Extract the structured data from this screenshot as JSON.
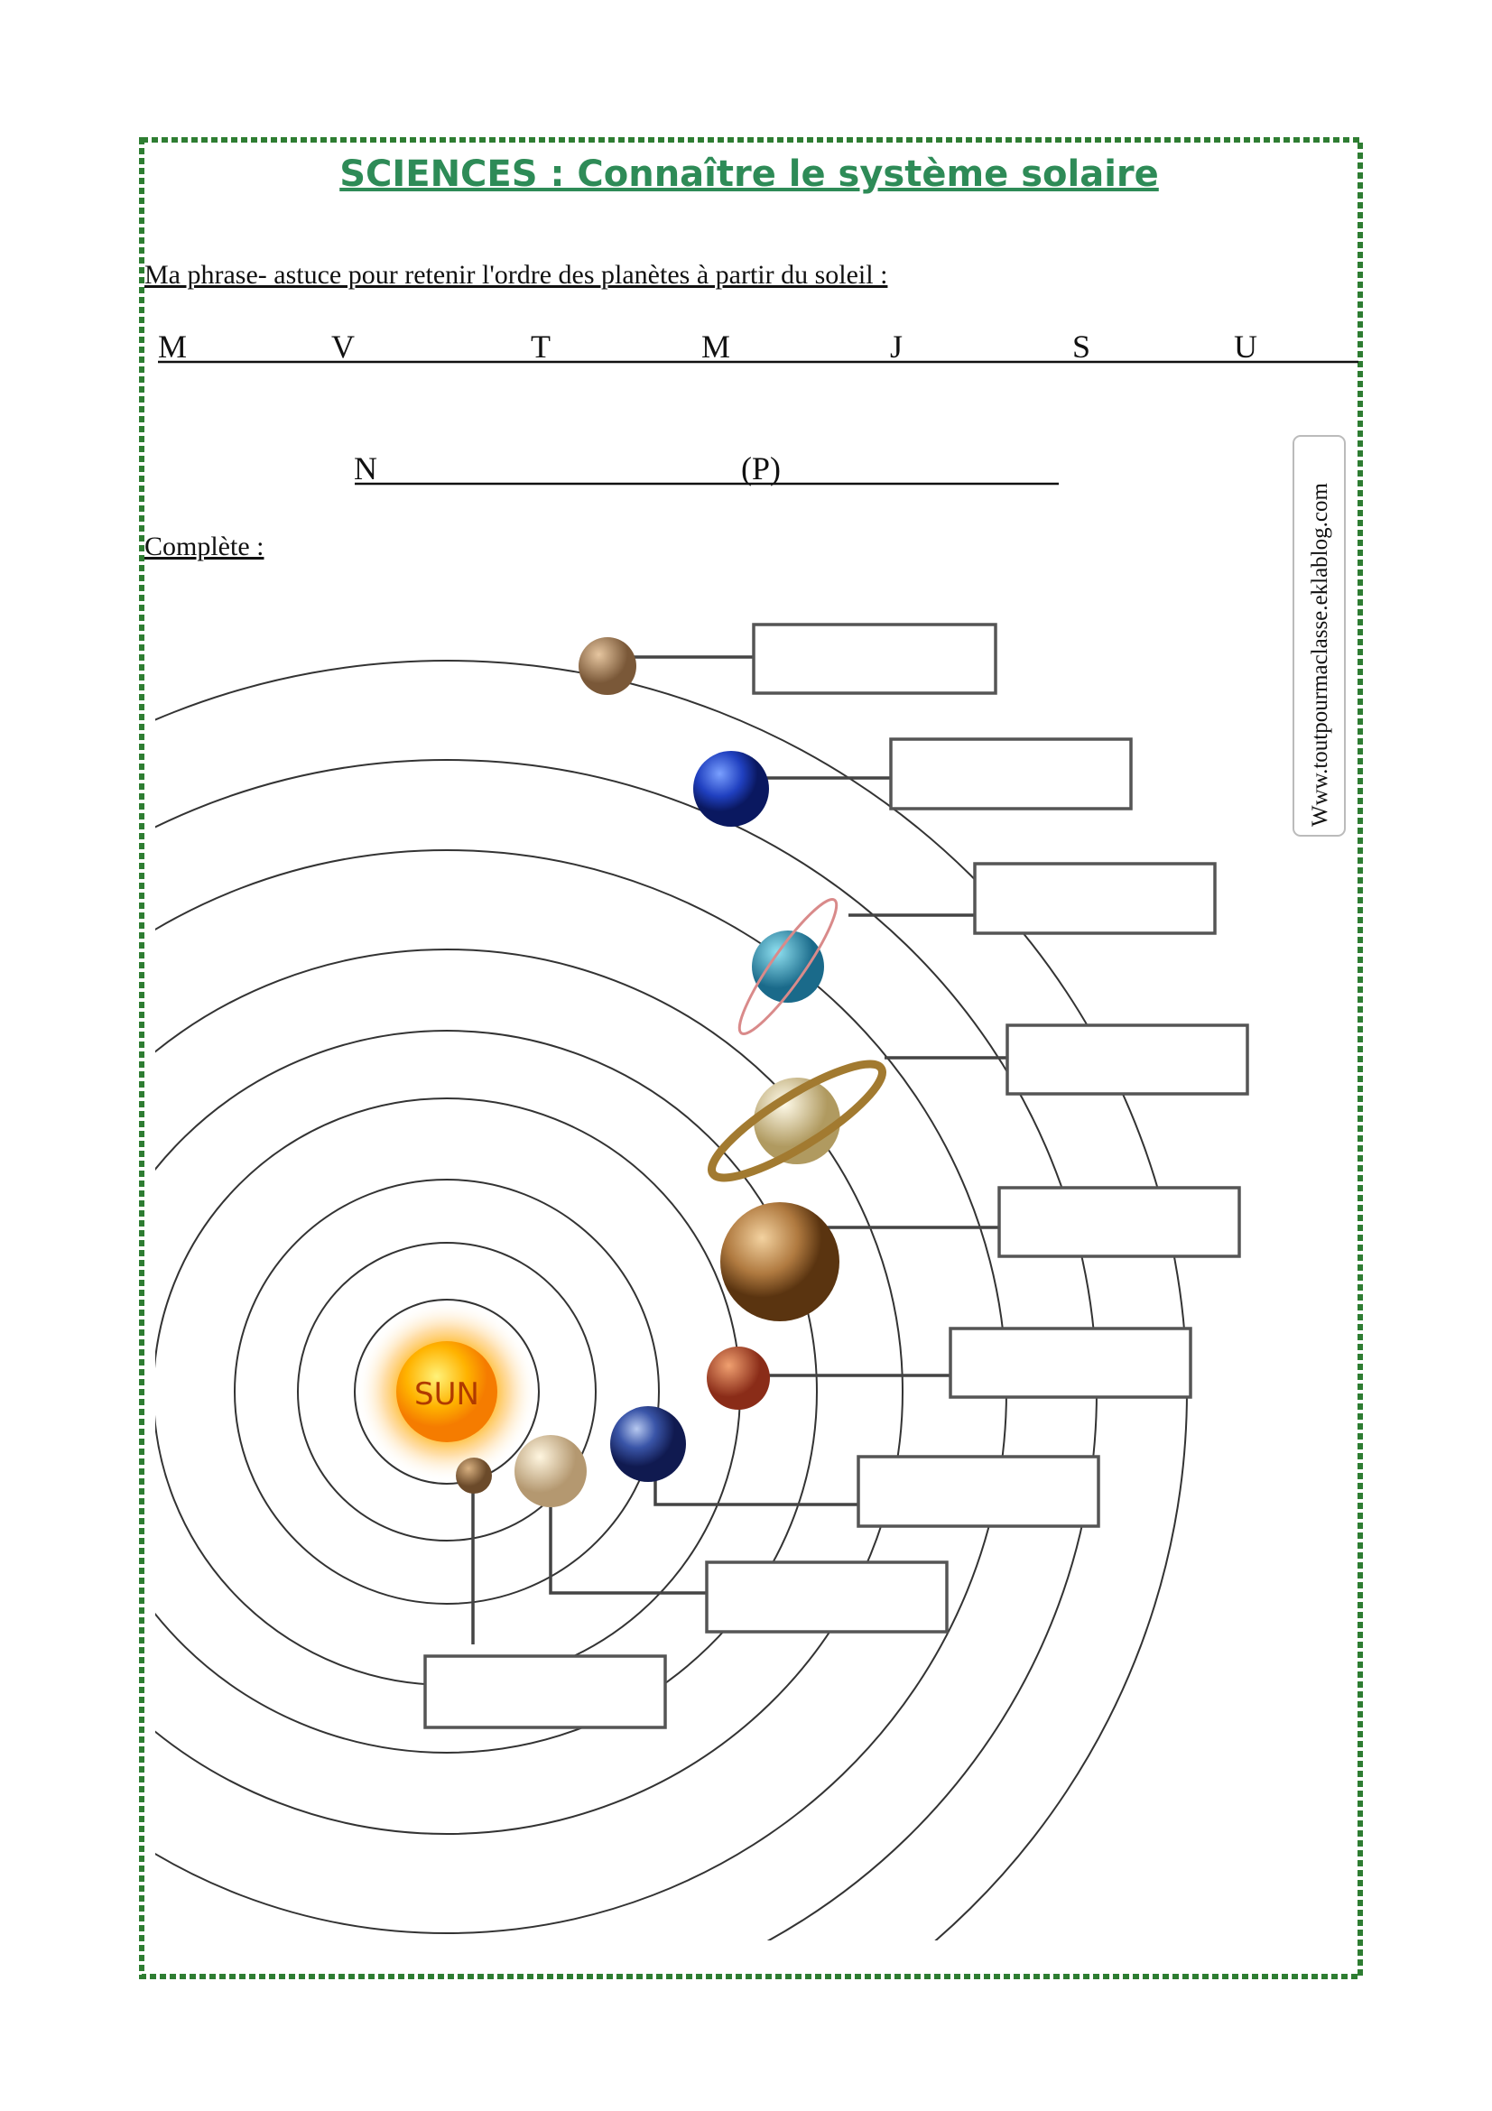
{
  "header": {
    "title": "SCIENCES : Connaître le système solaire"
  },
  "prompt": "Ma phrase- astuce pour retenir l'ordre des planètes à partir du soleil :",
  "letters_row1": [
    "M",
    "V",
    "T",
    "M",
    "J",
    "S",
    "U"
  ],
  "letters_row2": [
    "N",
    "(P)"
  ],
  "instruction": "Complète :",
  "diagram": {
    "sun_label": "SUN"
  },
  "side_label": "Www.toutpourmaclasse.eklablog.com"
}
